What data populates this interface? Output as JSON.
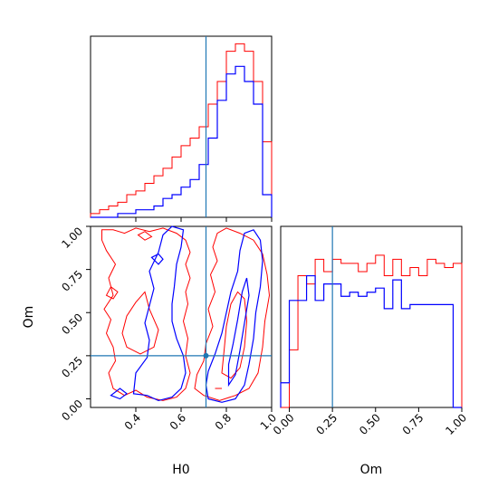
{
  "chart_data": {
    "type": "corner",
    "parameters": [
      "H0",
      "Om"
    ],
    "truths": {
      "H0": 0.71,
      "Om": 0.25
    },
    "colors": {
      "red": "#ff0000",
      "blue": "#0000ff",
      "truth": "#1f77b4"
    },
    "panels": {
      "h0_hist": {
        "xlim": [
          0.2,
          1.0
        ],
        "bin_edges": [
          0.2,
          0.24,
          0.28,
          0.32,
          0.36,
          0.4,
          0.44,
          0.48,
          0.52,
          0.56,
          0.6,
          0.64,
          0.68,
          0.72,
          0.76,
          0.8,
          0.84,
          0.88,
          0.92,
          0.96,
          1.0
        ],
        "red_counts": [
          1,
          2,
          3,
          4,
          6,
          7,
          9,
          11,
          13,
          16,
          19,
          21,
          24,
          30,
          36,
          44,
          46,
          44,
          36,
          20
        ],
        "blue_counts": [
          0,
          0,
          0,
          1,
          1,
          2,
          2,
          3,
          5,
          6,
          8,
          10,
          14,
          21,
          31,
          38,
          40,
          36,
          30,
          6
        ],
        "ylim": [
          0,
          48
        ]
      },
      "om_hist": {
        "xlim": [
          -0.05,
          1.0
        ],
        "bin_edges": [
          -0.05,
          0.0,
          0.05,
          0.1,
          0.15,
          0.2,
          0.25,
          0.3,
          0.35,
          0.4,
          0.45,
          0.5,
          0.55,
          0.6,
          0.65,
          0.7,
          0.75,
          0.8,
          0.85,
          0.9,
          0.95,
          1.0
        ],
        "red_counts": [
          0,
          14,
          32,
          30,
          36,
          33,
          36,
          35,
          35,
          33,
          35,
          37,
          32,
          36,
          32,
          34,
          32,
          36,
          35,
          34,
          35
        ],
        "blue_counts": [
          6,
          26,
          26,
          32,
          26,
          30,
          30,
          27,
          28,
          27,
          28,
          29,
          24,
          31,
          24,
          25,
          25,
          25,
          25,
          25,
          0
        ],
        "ylim": [
          0,
          44
        ]
      },
      "joint": {
        "xlim": [
          0.2,
          1.0
        ],
        "ylim": [
          -0.05,
          1.0
        ],
        "xticks": [
          0.4,
          0.6,
          0.8,
          1.0
        ],
        "yticks": [
          0.0,
          0.25,
          0.5,
          0.75,
          1.0
        ]
      }
    },
    "x_tick_labels_joint": [
      "0.4",
      "0.6",
      "0.8",
      "1.0"
    ],
    "y_tick_labels_joint": [
      "0.00",
      "0.25",
      "0.50",
      "0.75",
      "1.00"
    ],
    "x_tick_labels_om": [
      "0.00",
      "0.25",
      "0.50",
      "0.75",
      "1.00"
    ],
    "xlabel_left": "H0",
    "xlabel_right": "Om",
    "ylabel_joint": "Om"
  }
}
